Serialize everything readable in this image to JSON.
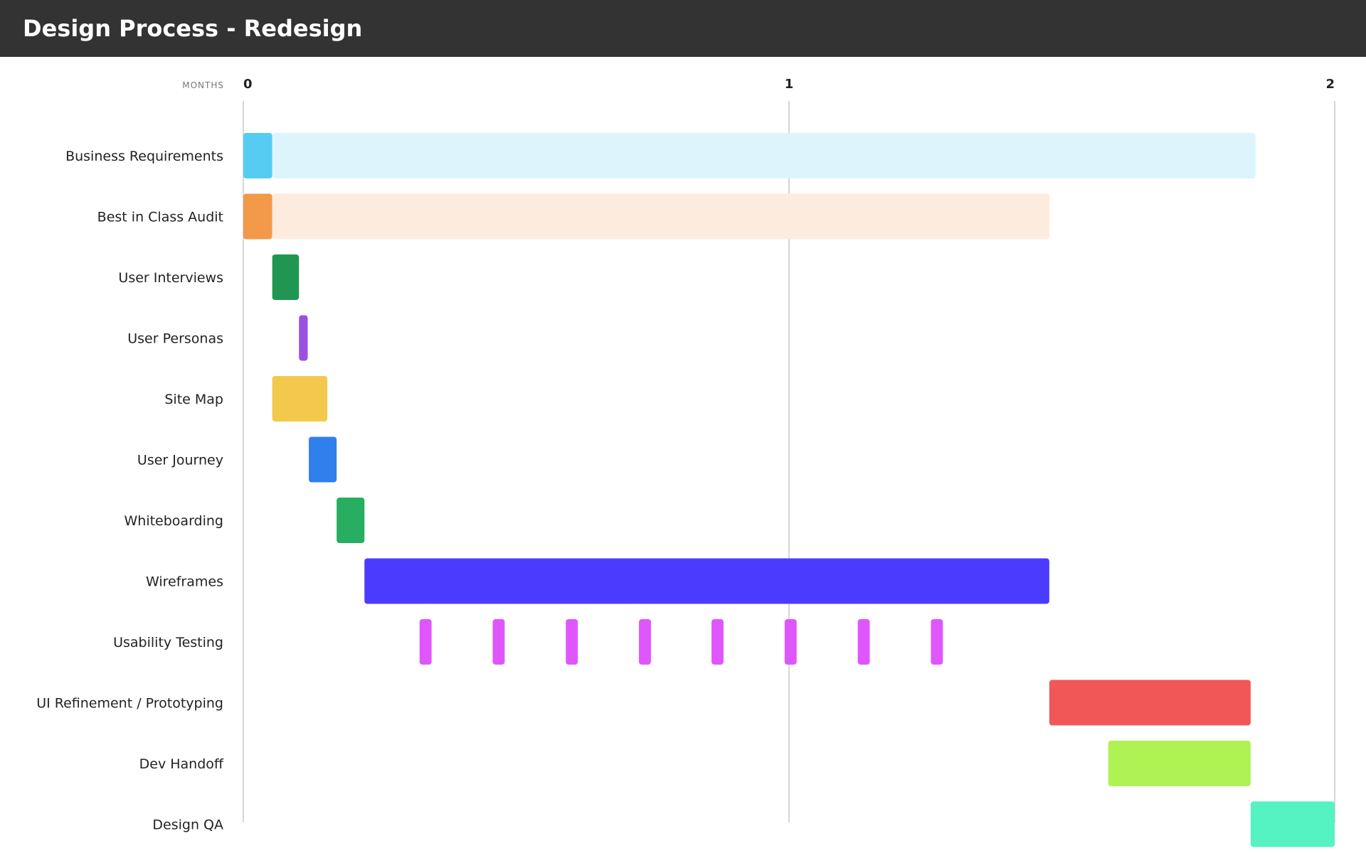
{
  "header": {
    "title": "Design Process - Redesign"
  },
  "chart_data": {
    "type": "gantt",
    "title": "Design Process - Redesign",
    "xlabel": "MONTHS",
    "x_ticks": [
      0,
      1,
      2
    ],
    "xlim": [
      0,
      2
    ],
    "grid": true,
    "tasks": [
      {
        "label": "Business Requirements",
        "segments": [
          {
            "start": 0,
            "end": 0.053,
            "color": "#56CCF2"
          },
          {
            "start": 0.053,
            "end": 1.855,
            "color": "#DDF4FC"
          }
        ]
      },
      {
        "label": "Best in Class Audit",
        "segments": [
          {
            "start": 0,
            "end": 0.053,
            "color": "#F2994A"
          },
          {
            "start": 0.053,
            "end": 1.477,
            "color": "#FDEBDD"
          }
        ]
      },
      {
        "label": "User Interviews",
        "segments": [
          {
            "start": 0.053,
            "end": 0.102,
            "color": "#219653"
          }
        ]
      },
      {
        "label": "User Personas",
        "segments": [
          {
            "start": 0.102,
            "end": 0.118,
            "color": "#9B51E0"
          }
        ]
      },
      {
        "label": "Site Map",
        "segments": [
          {
            "start": 0.053,
            "end": 0.154,
            "color": "#F2C94C"
          }
        ]
      },
      {
        "label": "User Journey",
        "segments": [
          {
            "start": 0.12,
            "end": 0.171,
            "color": "#2F80ED"
          }
        ]
      },
      {
        "label": "Whiteboarding",
        "segments": [
          {
            "start": 0.171,
            "end": 0.222,
            "color": "#27AE60"
          }
        ]
      },
      {
        "label": "Wireframes",
        "segments": [
          {
            "start": 0.222,
            "end": 1.477,
            "color": "#4B3BFF"
          }
        ]
      },
      {
        "label": "Usability Testing",
        "segments": [
          {
            "start": 0.323,
            "end": 0.345,
            "color": "#E056FD"
          },
          {
            "start": 0.457,
            "end": 0.479,
            "color": "#E056FD"
          },
          {
            "start": 0.591,
            "end": 0.613,
            "color": "#E056FD"
          },
          {
            "start": 0.725,
            "end": 0.747,
            "color": "#E056FD"
          },
          {
            "start": 0.858,
            "end": 0.88,
            "color": "#E056FD"
          },
          {
            "start": 0.992,
            "end": 1.014,
            "color": "#E056FD"
          },
          {
            "start": 1.126,
            "end": 1.148,
            "color": "#E056FD"
          },
          {
            "start": 1.26,
            "end": 1.282,
            "color": "#E056FD"
          }
        ]
      },
      {
        "label": "UI Refinement / Prototyping",
        "segments": [
          {
            "start": 1.477,
            "end": 1.846,
            "color": "#F25757"
          }
        ]
      },
      {
        "label": "Dev Handoff",
        "segments": [
          {
            "start": 1.585,
            "end": 1.846,
            "color": "#AEF254"
          }
        ]
      },
      {
        "label": "Design QA",
        "segments": [
          {
            "start": 1.846,
            "end": 2.0,
            "color": "#55F2C2"
          }
        ]
      }
    ]
  }
}
